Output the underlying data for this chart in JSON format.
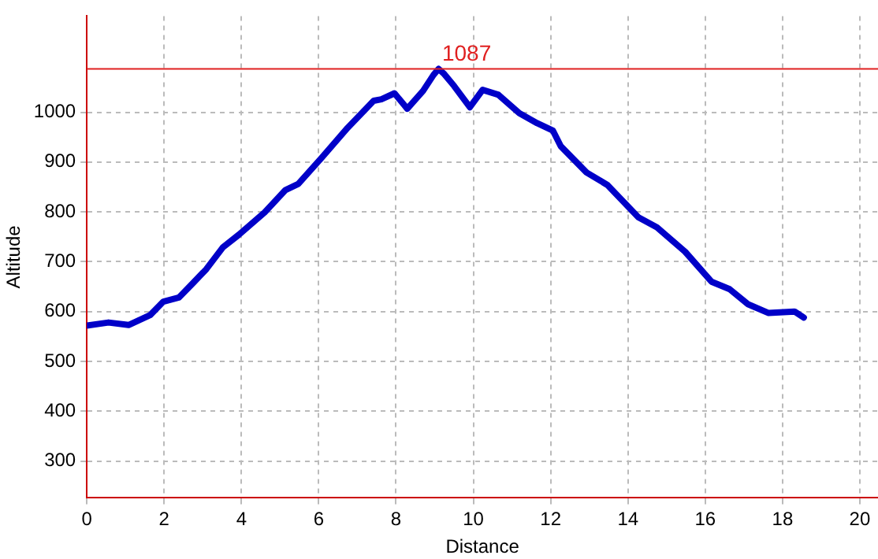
{
  "chart_data": {
    "type": "line",
    "xlabel": "Distance",
    "ylabel": "Altitude",
    "xlim": [
      0,
      20.47
    ],
    "xticks": [
      0,
      2,
      4,
      6,
      8,
      10,
      12,
      14,
      16,
      18,
      20
    ],
    "ylim": [
      226,
      1193
    ],
    "yticks": [
      300,
      400,
      500,
      600,
      700,
      800,
      900,
      1000
    ],
    "grid": true,
    "legend": false,
    "marker": "none",
    "line_style": "solid",
    "ref_lines": [
      {
        "axis": "y",
        "value": 1087,
        "label": "1087",
        "color": "#e02020"
      }
    ],
    "series": [
      {
        "color": "#0000c8",
        "x": [
          0,
          0.56,
          1.08,
          1.64,
          1.98,
          2.38,
          2.72,
          3.09,
          3.52,
          3.93,
          4.6,
          5.14,
          5.47,
          6.08,
          6.75,
          7.42,
          7.62,
          7.96,
          8.29,
          8.7,
          8.97,
          9.1,
          9.23,
          9.5,
          9.91,
          10.24,
          10.65,
          11.19,
          11.65,
          12.06,
          12.26,
          12.93,
          13.47,
          14.27,
          14.75,
          15.48,
          16.16,
          16.63,
          17.1,
          17.64,
          18.31,
          18.55
        ],
        "values": [
          572,
          578,
          573,
          593,
          620,
          628,
          655,
          685,
          729,
          754,
          799,
          844,
          856,
          909,
          969,
          1023,
          1026,
          1038,
          1007,
          1043,
          1075,
          1087,
          1078,
          1053,
          1010,
          1045,
          1035,
          998,
          978,
          963,
          932,
          879,
          854,
          789,
          769,
          720,
          660,
          645,
          615,
          597,
          600,
          588
        ]
      }
    ]
  }
}
